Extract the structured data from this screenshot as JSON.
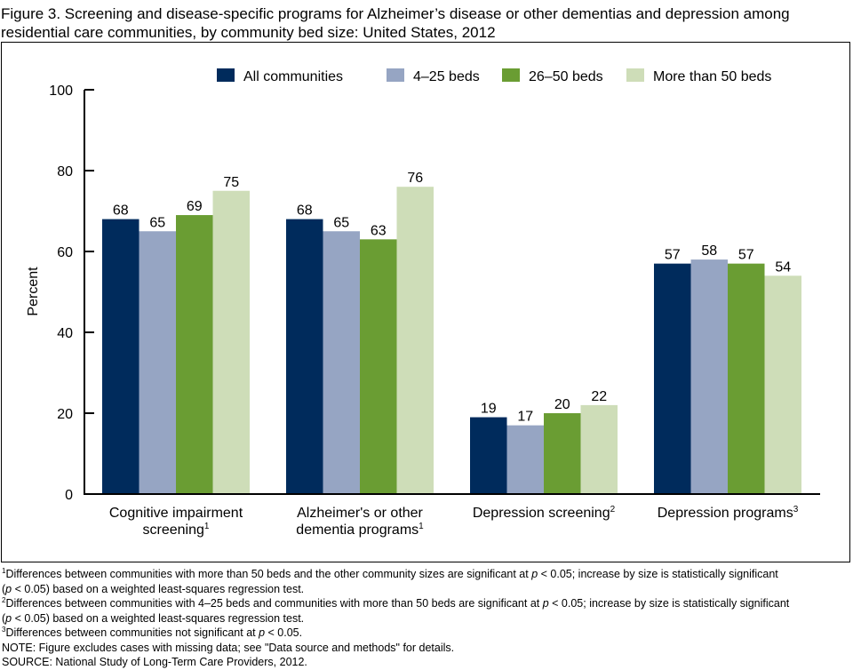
{
  "title": "Figure 3. Screening and disease-specific programs for Alzheimer’s disease or other dementias and depression among residential care communities, by community bed size: United States, 2012",
  "chart_data": {
    "type": "bar",
    "title": "Figure 3. Screening and disease-specific programs for Alzheimer’s disease or other dementias and depression among residential care communities, by community bed size: United States, 2012",
    "xlabel": "",
    "ylabel": "Percent",
    "ylim": [
      0,
      100
    ],
    "yticks": [
      0,
      20,
      40,
      60,
      80,
      100
    ],
    "grid": false,
    "legend_position": "top-right",
    "categories": [
      {
        "lines": [
          "Cognitive impairment",
          "screening"
        ],
        "sup": [
          "",
          "1"
        ]
      },
      {
        "lines": [
          "Alzheimer's or other",
          "dementia programs"
        ],
        "sup": [
          "",
          "1"
        ]
      },
      {
        "lines": [
          "Depression screening"
        ],
        "sup": [
          "2"
        ]
      },
      {
        "lines": [
          "Depression programs"
        ],
        "sup": [
          "3"
        ]
      }
    ],
    "series": [
      {
        "name": "All communities",
        "color": "#002B5C",
        "values": [
          68,
          68,
          19,
          57
        ]
      },
      {
        "name": "4–25 beds",
        "color": "#96A5C3",
        "values": [
          65,
          65,
          17,
          58
        ]
      },
      {
        "name": "26–50 beds",
        "color": "#6A9D33",
        "values": [
          69,
          63,
          20,
          57
        ]
      },
      {
        "name": "More than 50 beds",
        "color": "#CEDDB8",
        "values": [
          75,
          76,
          22,
          54
        ]
      }
    ]
  },
  "notes": [
    {
      "sup": "1",
      "parts": [
        {
          "t": "Differences between communities with more than 50 beds and the other community sizes are significant at "
        },
        {
          "i": "p"
        },
        {
          "t": " < 0.05; increase by size is statistically significant"
        }
      ]
    },
    {
      "sup": "",
      "parts": [
        {
          "t": "("
        },
        {
          "i": "p"
        },
        {
          "t": " < 0.05) based on a weighted least-squares regression test."
        }
      ]
    },
    {
      "sup": "2",
      "parts": [
        {
          "t": "Differences between communities with 4–25 beds and communities with more than 50 beds are significant at "
        },
        {
          "i": "p"
        },
        {
          "t": " < 0.05; increase by size is statistically significant"
        }
      ]
    },
    {
      "sup": "",
      "parts": [
        {
          "t": "("
        },
        {
          "i": "p"
        },
        {
          "t": " < 0.05) based on a weighted least-squares regression test."
        }
      ]
    },
    {
      "sup": "3",
      "parts": [
        {
          "t": "Differences between communities not significant at "
        },
        {
          "i": "p"
        },
        {
          "t": " < 0.05."
        }
      ]
    },
    {
      "sup": "",
      "parts": [
        {
          "t": "NOTE: Figure excludes cases with missing data; see \"Data source and methods\" for details."
        }
      ]
    },
    {
      "sup": "",
      "parts": [
        {
          "t": "SOURCE: National Study of Long-Term Care Providers, 2012."
        }
      ]
    }
  ]
}
